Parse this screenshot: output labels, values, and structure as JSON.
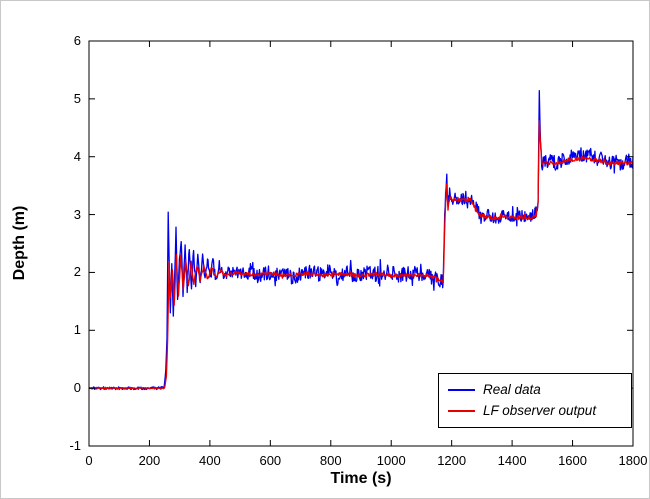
{
  "chart_data": {
    "type": "line",
    "title": "",
    "xlabel": "Time (s)",
    "ylabel": "Depth (m)",
    "xlim": [
      0,
      1800
    ],
    "ylim": [
      -1,
      6
    ],
    "xticks": [
      0,
      200,
      400,
      600,
      800,
      1000,
      1200,
      1400,
      1600,
      1800
    ],
    "yticks": [
      -1,
      0,
      1,
      2,
      3,
      4,
      5,
      6
    ],
    "grid": false,
    "legend_position": "bottom-right",
    "series": [
      {
        "name": "Real data",
        "color": "#0000ee",
        "noise_amplitude": [
          [
            0,
            0.025
          ],
          [
            248,
            0.025
          ],
          [
            262,
            0.05
          ],
          [
            460,
            0.09
          ],
          [
            530,
            0.13
          ],
          [
            1170,
            0.13
          ],
          [
            1195,
            0.11
          ],
          [
            1480,
            0.1
          ],
          [
            1510,
            0.12
          ],
          [
            1800,
            0.13
          ]
        ],
        "keypoints": [
          [
            0,
            0
          ],
          [
            60,
            0
          ],
          [
            120,
            0
          ],
          [
            180,
            0
          ],
          [
            248,
            0
          ],
          [
            254,
            0.3
          ],
          [
            258,
            0.9
          ],
          [
            262,
            3.05
          ],
          [
            266,
            2.0
          ],
          [
            269,
            1.3
          ],
          [
            274,
            2.1
          ],
          [
            279,
            1.25
          ],
          [
            284,
            2.0
          ],
          [
            288,
            2.75
          ],
          [
            293,
            1.5
          ],
          [
            299,
            2.2
          ],
          [
            305,
            2.55
          ],
          [
            311,
            1.6
          ],
          [
            318,
            2.5
          ],
          [
            325,
            1.7
          ],
          [
            332,
            2.45
          ],
          [
            339,
            1.72
          ],
          [
            346,
            2.4
          ],
          [
            353,
            1.78
          ],
          [
            360,
            2.35
          ],
          [
            368,
            1.8
          ],
          [
            376,
            2.3
          ],
          [
            384,
            1.85
          ],
          [
            392,
            2.25
          ],
          [
            401,
            1.86
          ],
          [
            410,
            2.2
          ],
          [
            420,
            1.9
          ],
          [
            431,
            2.15
          ],
          [
            443,
            1.93
          ],
          [
            455,
            2.05
          ],
          [
            470,
            2.0
          ],
          [
            520,
            2.0
          ],
          [
            560,
            1.95
          ],
          [
            600,
            2.0
          ],
          [
            640,
            1.97
          ],
          [
            680,
            1.93
          ],
          [
            720,
            2.0
          ],
          [
            760,
            1.97
          ],
          [
            800,
            2.02
          ],
          [
            825,
            1.88
          ],
          [
            850,
            2.0
          ],
          [
            880,
            1.95
          ],
          [
            910,
            2.0
          ],
          [
            950,
            1.97
          ],
          [
            990,
            2.0
          ],
          [
            1030,
            1.95
          ],
          [
            1070,
            1.98
          ],
          [
            1110,
            1.95
          ],
          [
            1145,
            1.9
          ],
          [
            1165,
            1.85
          ],
          [
            1172,
            1.8
          ],
          [
            1177,
            2.9
          ],
          [
            1180,
            3.3
          ],
          [
            1184,
            3.65
          ],
          [
            1188,
            3.15
          ],
          [
            1193,
            3.35
          ],
          [
            1200,
            3.28
          ],
          [
            1215,
            3.3
          ],
          [
            1230,
            3.25
          ],
          [
            1245,
            3.3
          ],
          [
            1260,
            3.28
          ],
          [
            1272,
            3.2
          ],
          [
            1285,
            3.08
          ],
          [
            1297,
            2.95
          ],
          [
            1310,
            3.0
          ],
          [
            1330,
            2.97
          ],
          [
            1350,
            2.93
          ],
          [
            1375,
            3.0
          ],
          [
            1400,
            2.95
          ],
          [
            1425,
            3.0
          ],
          [
            1450,
            2.95
          ],
          [
            1470,
            3.0
          ],
          [
            1481,
            3.05
          ],
          [
            1486,
            3.3
          ],
          [
            1490,
            5.15
          ],
          [
            1494,
            4.3
          ],
          [
            1498,
            3.85
          ],
          [
            1505,
            3.97
          ],
          [
            1515,
            3.9
          ],
          [
            1530,
            3.95
          ],
          [
            1545,
            3.88
          ],
          [
            1560,
            3.93
          ],
          [
            1580,
            3.97
          ],
          [
            1600,
            4.0
          ],
          [
            1620,
            4.05
          ],
          [
            1640,
            4.0
          ],
          [
            1660,
            4.03
          ],
          [
            1680,
            3.95
          ],
          [
            1700,
            4.0
          ],
          [
            1720,
            3.9
          ],
          [
            1740,
            3.95
          ],
          [
            1760,
            3.87
          ],
          [
            1780,
            3.95
          ],
          [
            1800,
            3.92
          ]
        ]
      },
      {
        "name": "LF observer output",
        "color": "#e60000",
        "noise_amplitude": [
          [
            0,
            0.008
          ],
          [
            250,
            0.008
          ],
          [
            300,
            0.03
          ],
          [
            1800,
            0.035
          ]
        ],
        "keypoints": [
          [
            0,
            0
          ],
          [
            100,
            0
          ],
          [
            200,
            0
          ],
          [
            250,
            0
          ],
          [
            256,
            0.2
          ],
          [
            260,
            0.8
          ],
          [
            265,
            2.2
          ],
          [
            270,
            1.55
          ],
          [
            276,
            2.05
          ],
          [
            282,
            1.45
          ],
          [
            289,
            2.3
          ],
          [
            296,
            1.6
          ],
          [
            304,
            2.28
          ],
          [
            312,
            1.68
          ],
          [
            320,
            2.22
          ],
          [
            329,
            1.75
          ],
          [
            338,
            2.18
          ],
          [
            347,
            1.8
          ],
          [
            357,
            2.12
          ],
          [
            368,
            1.85
          ],
          [
            380,
            2.1
          ],
          [
            393,
            1.88
          ],
          [
            406,
            2.08
          ],
          [
            420,
            1.9
          ],
          [
            435,
            2.03
          ],
          [
            450,
            1.95
          ],
          [
            480,
            2.0
          ],
          [
            540,
            1.96
          ],
          [
            600,
            1.98
          ],
          [
            660,
            1.94
          ],
          [
            720,
            1.98
          ],
          [
            780,
            1.95
          ],
          [
            840,
            1.97
          ],
          [
            900,
            1.95
          ],
          [
            960,
            1.97
          ],
          [
            1020,
            1.94
          ],
          [
            1080,
            1.96
          ],
          [
            1140,
            1.92
          ],
          [
            1165,
            1.86
          ],
          [
            1172,
            1.8
          ],
          [
            1178,
            2.95
          ],
          [
            1183,
            3.5
          ],
          [
            1188,
            3.1
          ],
          [
            1194,
            3.3
          ],
          [
            1205,
            3.25
          ],
          [
            1225,
            3.27
          ],
          [
            1245,
            3.24
          ],
          [
            1262,
            3.25
          ],
          [
            1275,
            3.15
          ],
          [
            1290,
            3.0
          ],
          [
            1310,
            2.97
          ],
          [
            1340,
            2.93
          ],
          [
            1370,
            2.97
          ],
          [
            1400,
            2.94
          ],
          [
            1430,
            2.96
          ],
          [
            1460,
            2.94
          ],
          [
            1480,
            3.0
          ],
          [
            1486,
            3.2
          ],
          [
            1490,
            4.65
          ],
          [
            1495,
            4.1
          ],
          [
            1500,
            3.85
          ],
          [
            1510,
            3.9
          ],
          [
            1530,
            3.88
          ],
          [
            1560,
            3.9
          ],
          [
            1590,
            3.93
          ],
          [
            1620,
            3.97
          ],
          [
            1650,
            3.98
          ],
          [
            1680,
            3.93
          ],
          [
            1710,
            3.9
          ],
          [
            1740,
            3.88
          ],
          [
            1770,
            3.9
          ],
          [
            1800,
            3.88
          ]
        ]
      }
    ]
  }
}
